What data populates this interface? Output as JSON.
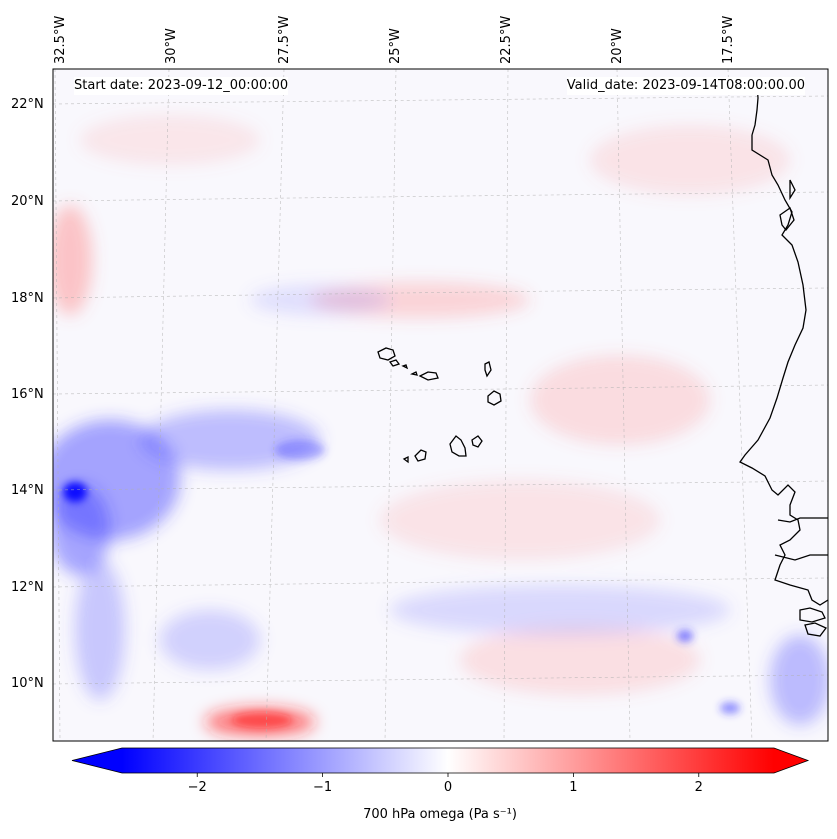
{
  "map": {
    "start_date": "Start date: 2023-09-12_00:00:00",
    "valid_date": "Valid_date: 2023-09-14T08:00:00.00",
    "lon_labels": [
      "32.5°W",
      "30°W",
      "27.5°W",
      "25°W",
      "22.5°W",
      "20°W",
      "17.5°W"
    ],
    "lat_labels": [
      "22°N",
      "20°N",
      "18°N",
      "16°N",
      "14°N",
      "12°N",
      "10°N"
    ],
    "field": "700 hPa omega",
    "colormap": "bwr",
    "colors": {
      "negative": "#0000ff",
      "zero": "#ffffff",
      "positive": "#ff0000",
      "coast": "#000000",
      "grid": "#b0b0b0"
    }
  },
  "colorbar": {
    "label": "700 hPa omega (Pa s⁻¹)",
    "ticks": [
      "−2",
      "−1",
      "0",
      "1",
      "2"
    ],
    "tick_values": [
      -2,
      -1,
      0,
      1,
      2
    ],
    "range": [
      -2.6,
      2.6
    ],
    "extend": "both"
  }
}
